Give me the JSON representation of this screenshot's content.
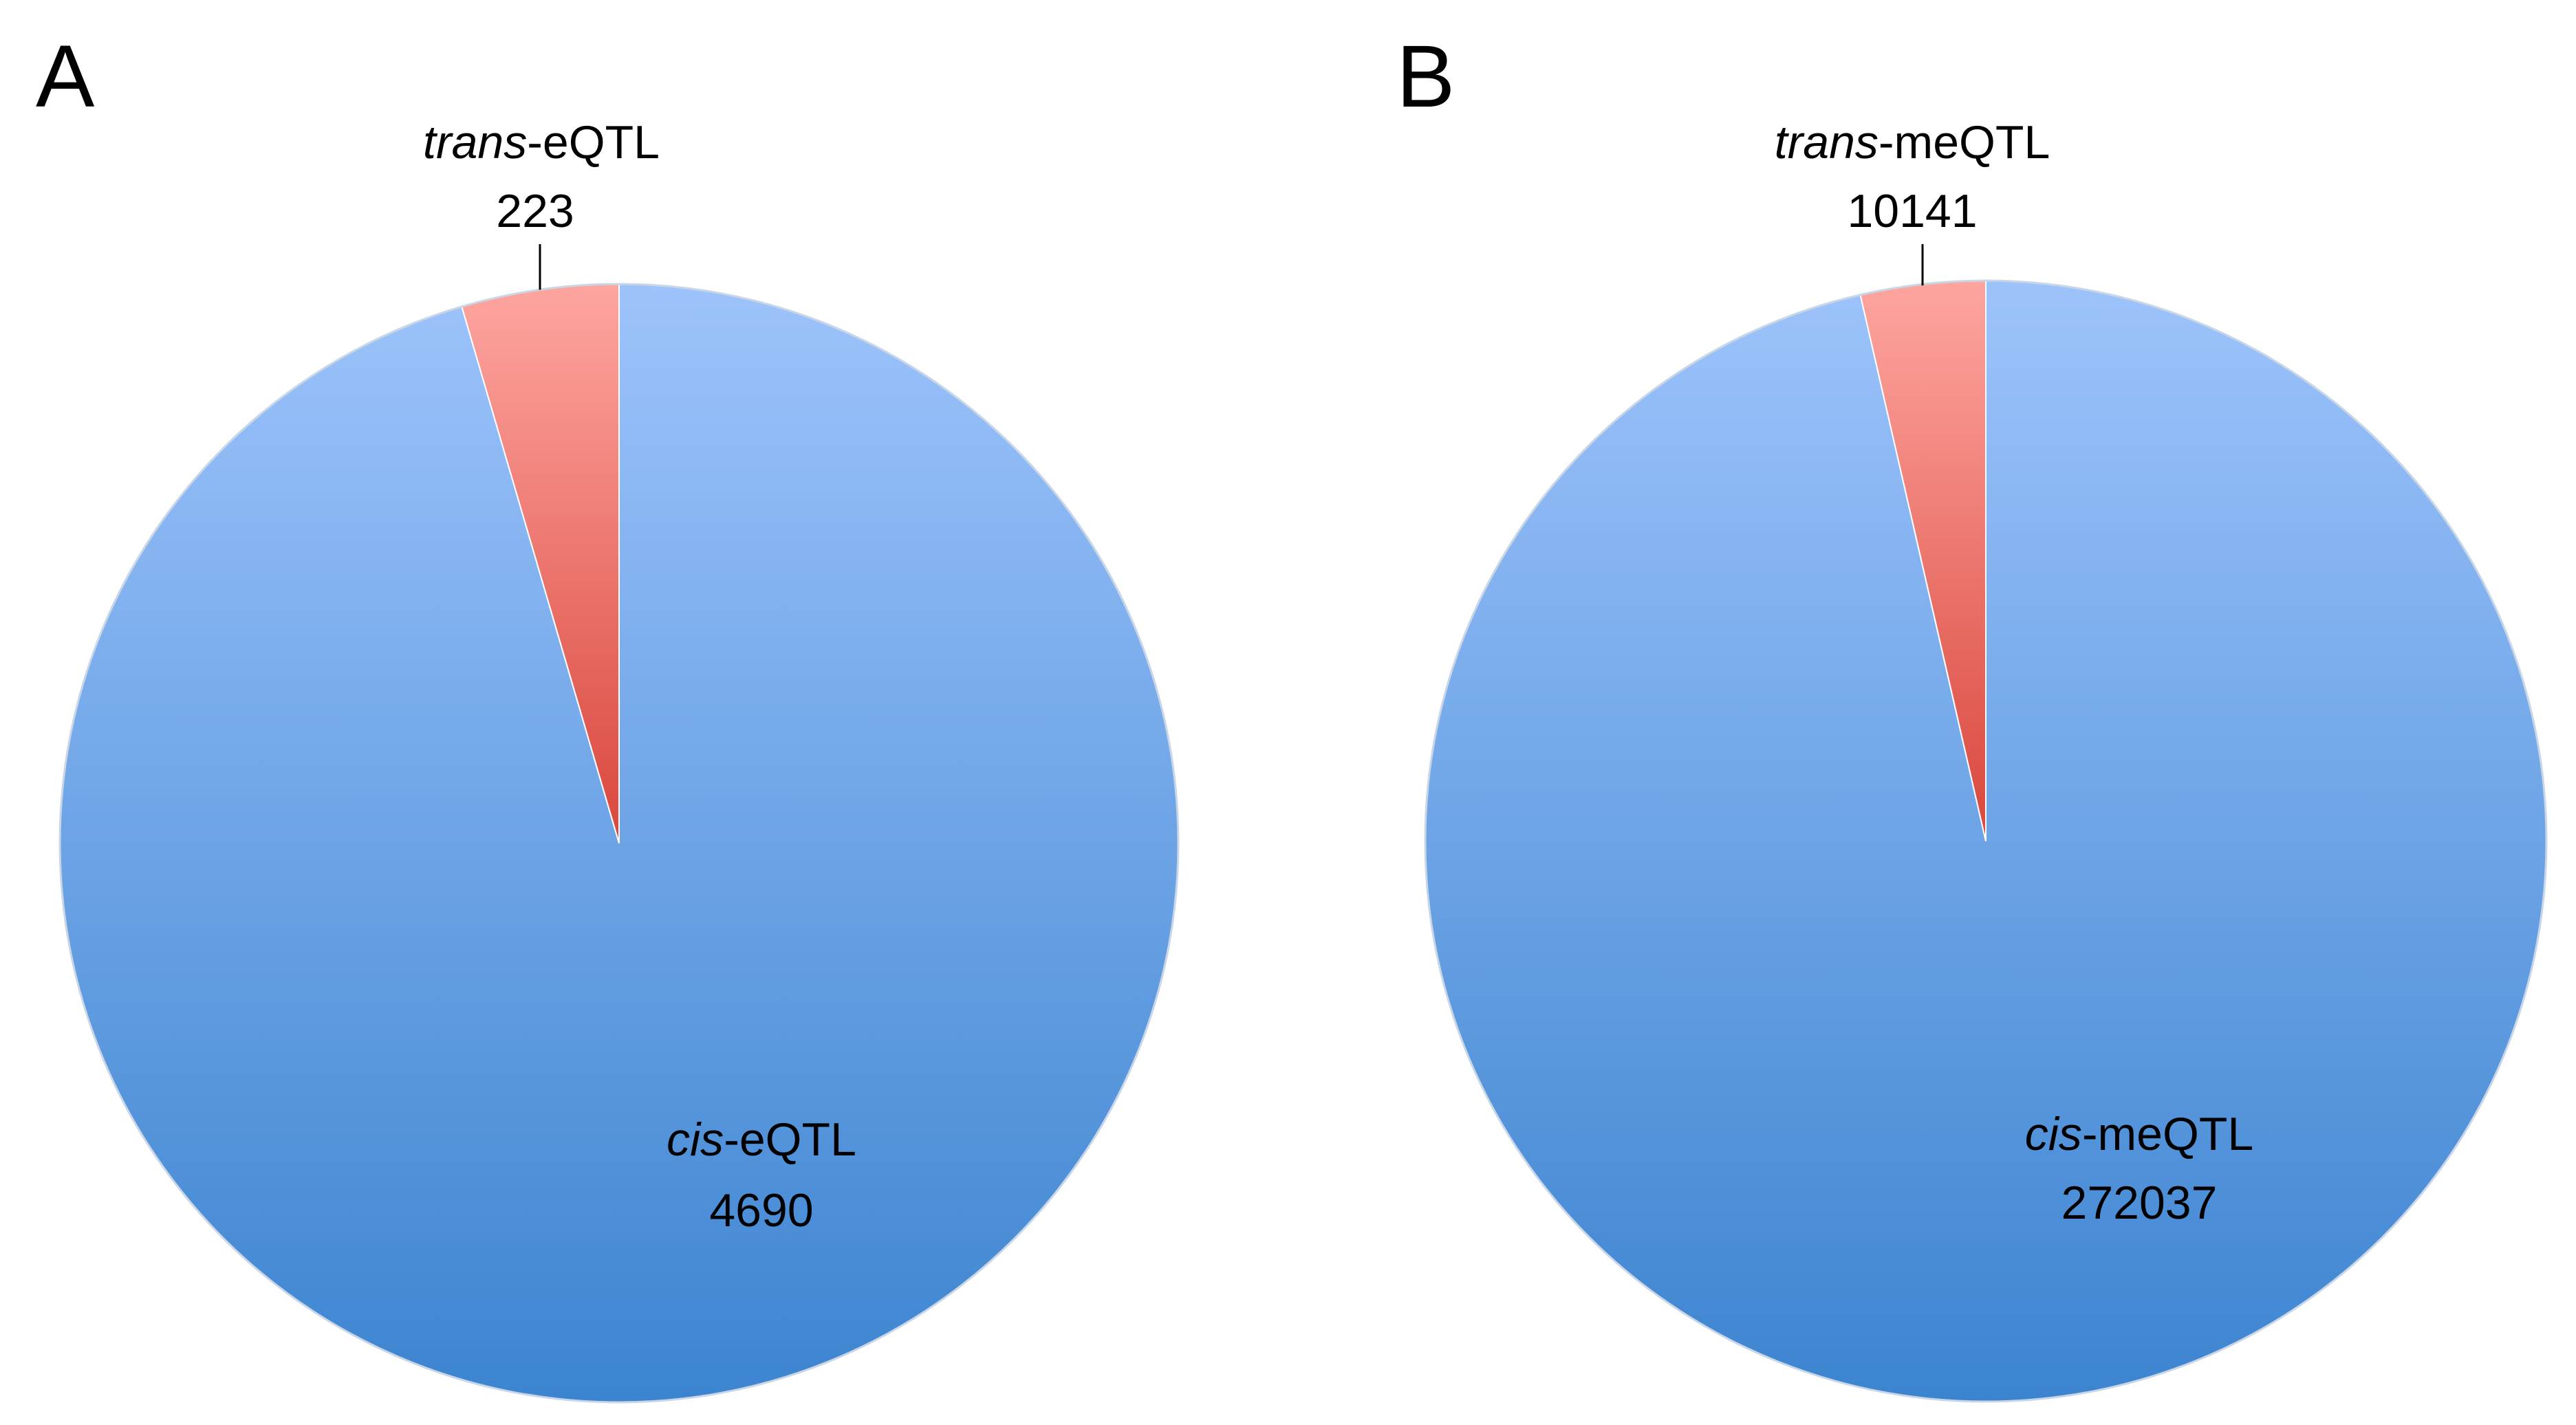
{
  "panels": [
    {
      "letter": "A"
    },
    {
      "letter": "B"
    }
  ],
  "colors": {
    "cis_top": "#9dc3fb",
    "cis_bottom": "#3c84d0",
    "trans_top": "#fea5a0",
    "trans_bottom": "#d9473c"
  },
  "chart_data": [
    {
      "type": "pie",
      "title": "",
      "slices": [
        {
          "prefix": "cis",
          "suffix": "-eQTL",
          "value": 4690
        },
        {
          "prefix": "trans",
          "suffix": "-eQTL",
          "value": 223
        }
      ],
      "legend": "none"
    },
    {
      "type": "pie",
      "title": "",
      "slices": [
        {
          "prefix": "cis",
          "suffix": "-meQTL",
          "value": 272037
        },
        {
          "prefix": "trans",
          "suffix": "-meQTL",
          "value": 10141
        }
      ],
      "legend": "none"
    }
  ]
}
